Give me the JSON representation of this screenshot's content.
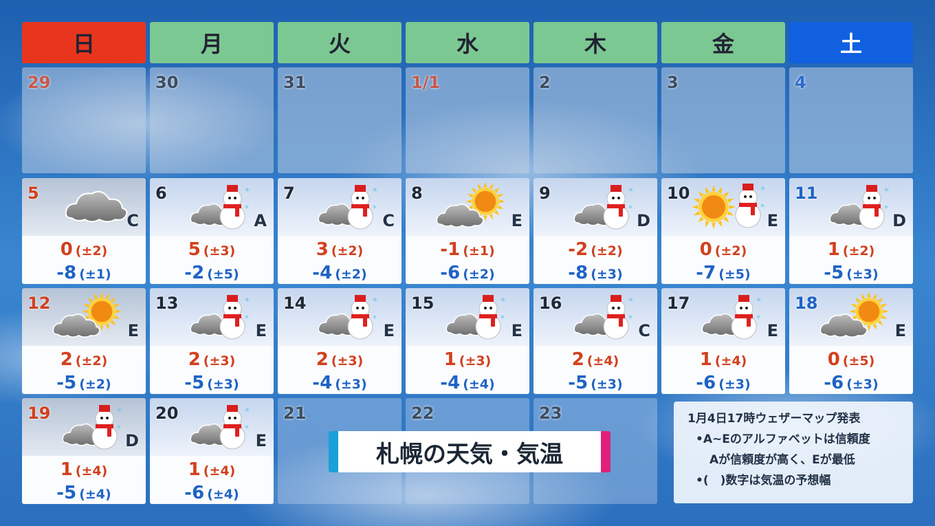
{
  "weekdays": [
    {
      "label": "日",
      "color": "#e8361e"
    },
    {
      "label": "月",
      "color": "#7cc892"
    },
    {
      "label": "火",
      "color": "#7cc892"
    },
    {
      "label": "水",
      "color": "#7cc892"
    },
    {
      "label": "木",
      "color": "#7cc892"
    },
    {
      "label": "金",
      "color": "#7cc892"
    },
    {
      "label": "土",
      "color": "#1060e0"
    }
  ],
  "colors": {
    "sunday_holiday": "#c9574a",
    "saturday": "#2d6ad0",
    "high": "#d2401e",
    "low": "#1f63c4"
  },
  "past_days": [
    {
      "day": "29",
      "type": "sun"
    },
    {
      "day": "30"
    },
    {
      "day": "31"
    },
    {
      "day": "1/1",
      "type": "sun"
    },
    {
      "day": "2"
    },
    {
      "day": "3"
    },
    {
      "day": "4",
      "type": "sat"
    }
  ],
  "forecast": [
    {
      "day": "5",
      "icon": "cloud",
      "high": "0",
      "high_range": "(±2)",
      "low": "-8",
      "low_range": "(±1)",
      "reliability": "C"
    },
    {
      "day": "6",
      "icon": "cloud-snow",
      "high": "5",
      "high_range": "(±3)",
      "low": "-2",
      "low_range": "(±5)",
      "reliability": "A"
    },
    {
      "day": "7",
      "icon": "cloud-snow",
      "high": "3",
      "high_range": "(±2)",
      "low": "-4",
      "low_range": "(±2)",
      "reliability": "C"
    },
    {
      "day": "8",
      "icon": "cloud-sun",
      "high": "-1",
      "high_range": "(±1)",
      "low": "-6",
      "low_range": "(±2)",
      "reliability": "E"
    },
    {
      "day": "9",
      "icon": "cloud-snow",
      "high": "-2",
      "high_range": "(±2)",
      "low": "-8",
      "low_range": "(±3)",
      "reliability": "D"
    },
    {
      "day": "10",
      "icon": "sun-snow",
      "high": "0",
      "high_range": "(±2)",
      "low": "-7",
      "low_range": "(±5)",
      "reliability": "E"
    },
    {
      "day": "11",
      "icon": "cloud-snow",
      "high": "1",
      "high_range": "(±2)",
      "low": "-5",
      "low_range": "(±3)",
      "reliability": "D"
    },
    {
      "day": "12",
      "icon": "cloud-sun",
      "high": "2",
      "high_range": "(±2)",
      "low": "-5",
      "low_range": "(±2)",
      "reliability": "E"
    },
    {
      "day": "13",
      "icon": "cloud-snow",
      "high": "2",
      "high_range": "(±3)",
      "low": "-5",
      "low_range": "(±3)",
      "reliability": "E"
    },
    {
      "day": "14",
      "icon": "cloud-snow",
      "high": "2",
      "high_range": "(±3)",
      "low": "-4",
      "low_range": "(±3)",
      "reliability": "E"
    },
    {
      "day": "15",
      "icon": "cloud-snow",
      "high": "1",
      "high_range": "(±3)",
      "low": "-4",
      "low_range": "(±4)",
      "reliability": "E"
    },
    {
      "day": "16",
      "icon": "cloud-snow",
      "high": "2",
      "high_range": "(±4)",
      "low": "-5",
      "low_range": "(±3)",
      "reliability": "C"
    },
    {
      "day": "17",
      "icon": "cloud-snow",
      "high": "1",
      "high_range": "(±4)",
      "low": "-6",
      "low_range": "(±3)",
      "reliability": "E"
    },
    {
      "day": "18",
      "icon": "cloud-sun",
      "high": "0",
      "high_range": "(±5)",
      "low": "-6",
      "low_range": "(±3)",
      "reliability": "E"
    },
    {
      "day": "19",
      "icon": "cloud-snow",
      "high": "1",
      "high_range": "(±4)",
      "low": "-5",
      "low_range": "(±4)",
      "reliability": "D"
    },
    {
      "day": "20",
      "icon": "cloud-snow",
      "high": "1",
      "high_range": "(±4)",
      "low": "-6",
      "low_range": "(±4)",
      "reliability": "E"
    }
  ],
  "future_days": [
    "21",
    "22",
    "23"
  ],
  "title": "札幌の天気・気温",
  "notes": {
    "issued": "1月4日17時ウェザーマップ発表",
    "line1": "•A~Eのアルファベットは信頼度",
    "line2": "Aが信頼度が高く、Eが最低",
    "line3": "•(　)数字は気温の予想幅"
  }
}
